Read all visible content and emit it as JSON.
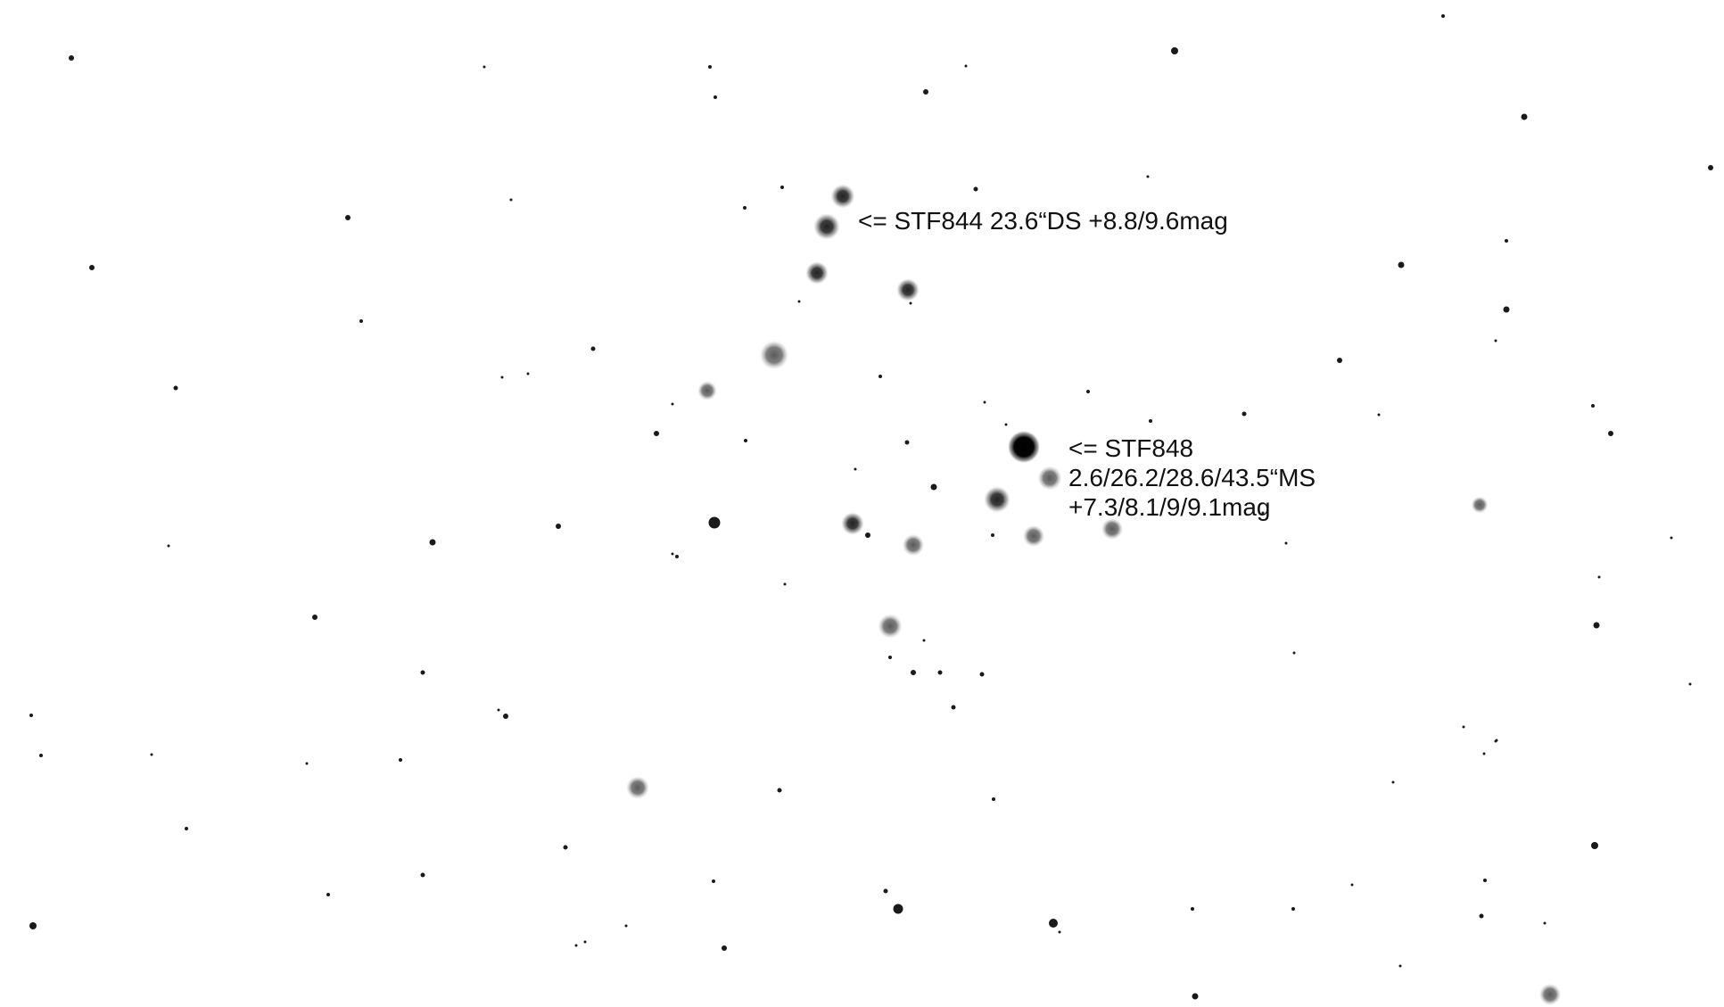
{
  "annotations": {
    "stf844": "<= STF844 23.6“DS +8.8/9.6mag",
    "stf848": {
      "line1": "<= STF848",
      "line2": "2.6/26.2/28.6/43.5“MS",
      "line3": "+7.3/8.1/9/9.1mag"
    }
  },
  "colors": {
    "background": "#ffffff",
    "star": "#1a1a1a",
    "text": "#111111"
  }
}
